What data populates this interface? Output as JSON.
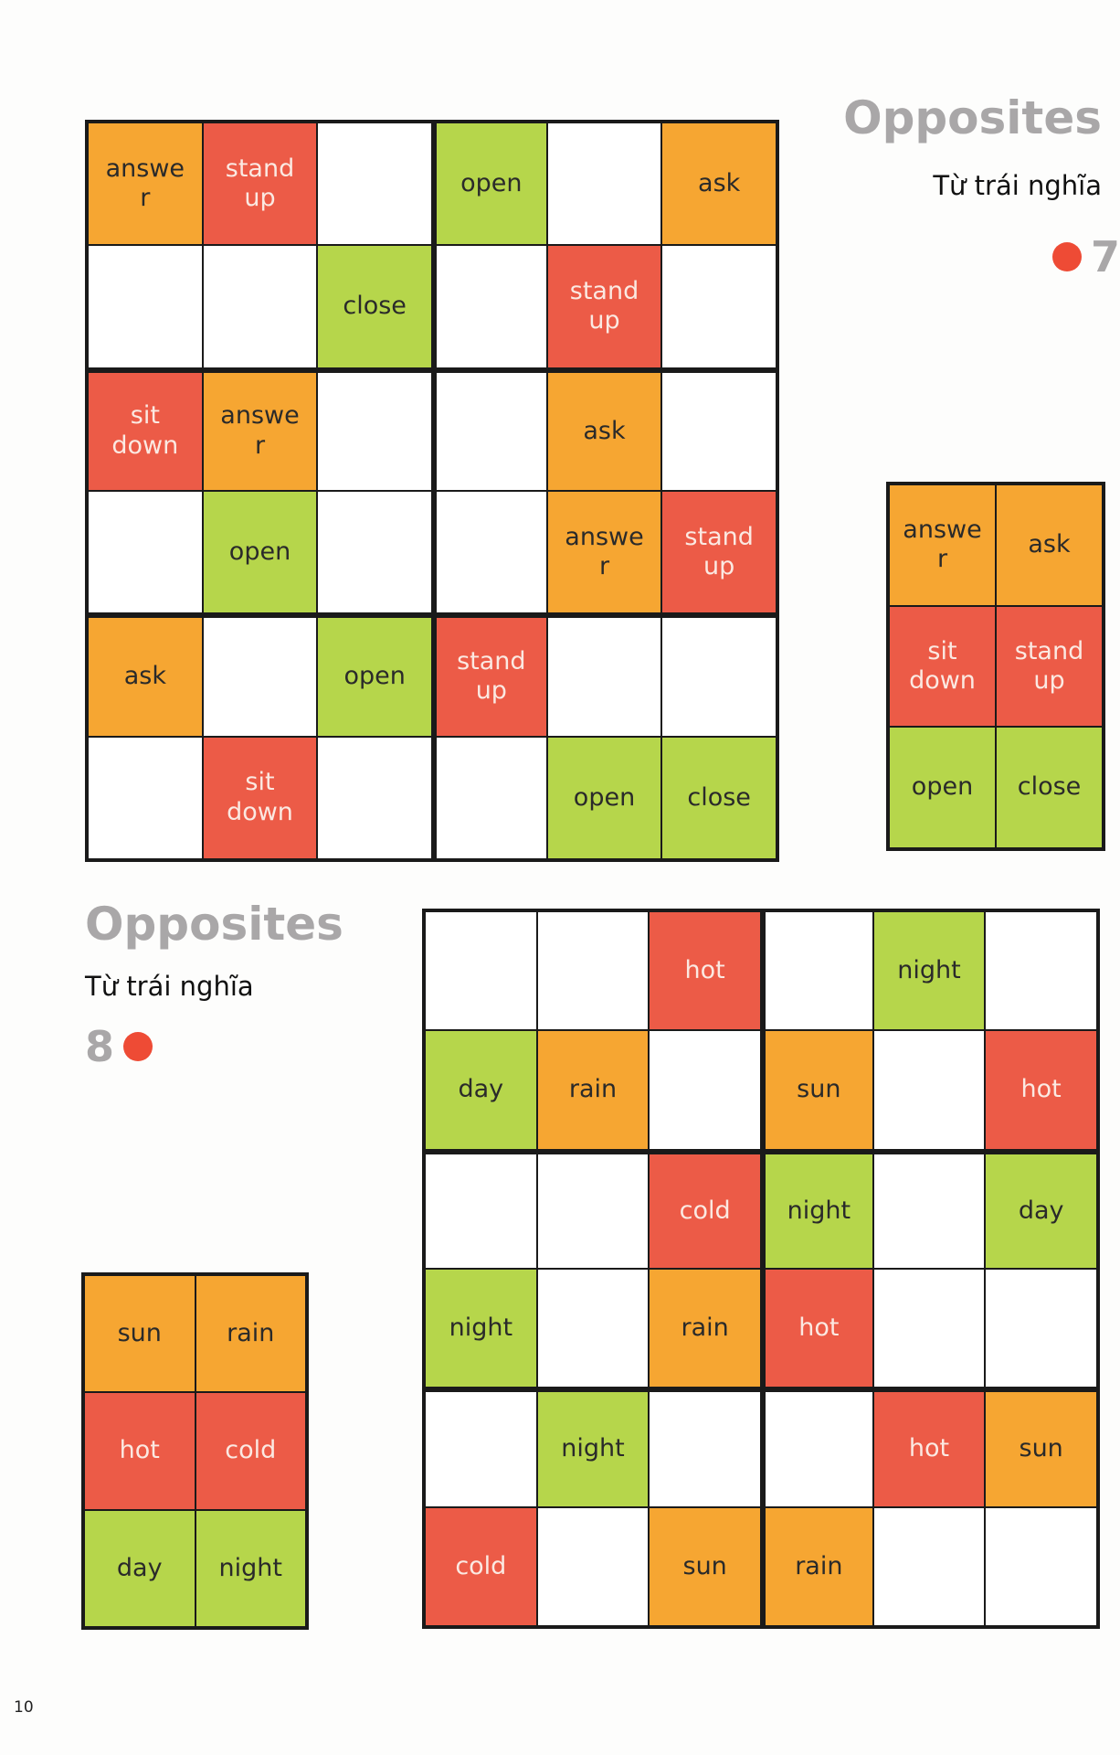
{
  "colors": {
    "orange": "#f6a632",
    "red": "#ec5b47",
    "green": "#b6d64b"
  },
  "categories": {
    "answer": "o",
    "ask": "o",
    "stand up": "r",
    "sit down": "r",
    "open": "g",
    "close": "g",
    "sun": "o",
    "rain": "o",
    "hot": "r",
    "cold": "r",
    "day": "g",
    "night": "g"
  },
  "puzzle7": {
    "title": "Opposites",
    "subtitle": "Từ trái nghĩa",
    "number": "7",
    "grid": [
      [
        "answer",
        "stand up",
        "",
        "open",
        "",
        "ask"
      ],
      [
        "",
        "",
        "close",
        "",
        "stand up",
        ""
      ],
      [
        "sit down",
        "answer",
        "",
        "",
        "ask",
        ""
      ],
      [
        "",
        "open",
        "",
        "",
        "answer",
        "stand up"
      ],
      [
        "ask",
        "",
        "open",
        "stand up",
        "",
        ""
      ],
      [
        "",
        "sit down",
        "",
        "",
        "open",
        "close"
      ]
    ],
    "key": [
      [
        "answer",
        "ask"
      ],
      [
        "sit down",
        "stand up"
      ],
      [
        "open",
        "close"
      ]
    ]
  },
  "puzzle8": {
    "title": "Opposites",
    "subtitle": "Từ trái nghĩa",
    "number": "8",
    "grid": [
      [
        "",
        "",
        "hot",
        "",
        "night",
        ""
      ],
      [
        "day",
        "rain",
        "",
        "sun",
        "",
        "hot"
      ],
      [
        "",
        "",
        "cold",
        "night",
        "",
        "day"
      ],
      [
        "night",
        "",
        "rain",
        "hot",
        "",
        ""
      ],
      [
        "",
        "night",
        "",
        "",
        "hot",
        "sun"
      ],
      [
        "cold",
        "",
        "sun",
        "rain",
        "",
        ""
      ]
    ],
    "key": [
      [
        "sun",
        "rain"
      ],
      [
        "hot",
        "cold"
      ],
      [
        "day",
        "night"
      ]
    ]
  },
  "page_number": "10"
}
